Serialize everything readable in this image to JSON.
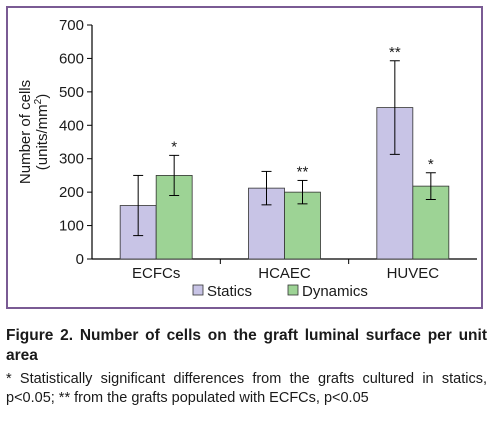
{
  "chart_data": {
    "type": "bar",
    "categories": [
      "ECFCs",
      "HCAEC",
      "HUVEC"
    ],
    "series": [
      {
        "name": "Statics",
        "color": "#c8c4e6",
        "values": [
          160,
          212,
          453
        ],
        "err": [
          90,
          50,
          140
        ],
        "marks": [
          "",
          "",
          "**"
        ]
      },
      {
        "name": "Dynamics",
        "color": "#9dd395",
        "values": [
          250,
          200,
          218
        ],
        "err": [
          60,
          35,
          40
        ],
        "marks": [
          "*",
          "**",
          "*"
        ]
      }
    ],
    "ylabel_line1": "Number of cells",
    "ylabel_line2": "(units/mm",
    "ylabel_sup": "2",
    "ylabel_close": ")",
    "ylim": [
      0,
      700
    ],
    "yticks": [
      "0",
      "100",
      "200",
      "300",
      "400",
      "500",
      "600",
      "700"
    ],
    "legend": "bottom",
    "grid": false
  },
  "caption": {
    "title": "Figure 2. Number of cells on the graft luminal surface per unit area",
    "note": "* Statistically significant differences from the grafts cultured in statics, p<0.05; ** from the grafts populated with ECFCs, p<0.05"
  }
}
